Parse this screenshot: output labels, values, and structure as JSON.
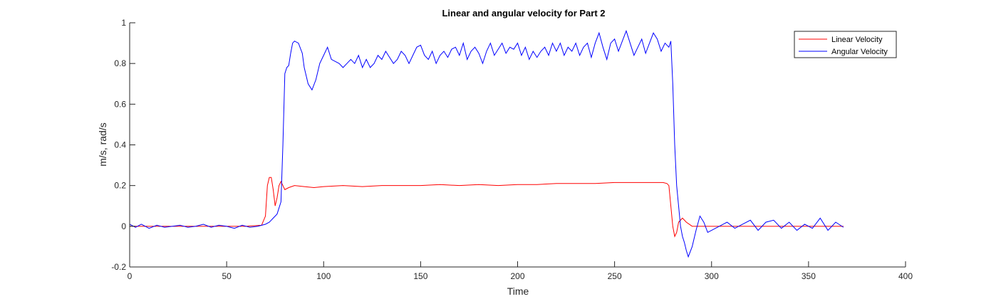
{
  "chart_data": {
    "type": "line",
    "title": "Linear and angular velocity for Part 2",
    "xlabel": "Time",
    "ylabel": "m/s, rad/s",
    "xlim": [
      0,
      400
    ],
    "ylim": [
      -0.2,
      1
    ],
    "xticks": [
      0,
      50,
      100,
      150,
      200,
      250,
      300,
      350,
      400
    ],
    "yticks": [
      -0.2,
      0,
      0.2,
      0.4,
      0.6,
      0.8,
      1
    ],
    "grid": false,
    "legend_position": "top-right",
    "series": [
      {
        "name": "Linear Velocity",
        "color": "#ff0000",
        "x": [
          0,
          10,
          20,
          30,
          40,
          50,
          60,
          68,
          70,
          71,
          72,
          73,
          74,
          75,
          76,
          77,
          78,
          79,
          80,
          82,
          85,
          90,
          95,
          100,
          110,
          120,
          130,
          140,
          150,
          160,
          170,
          180,
          190,
          200,
          210,
          220,
          230,
          240,
          250,
          260,
          270,
          275,
          277,
          278,
          279,
          280,
          281,
          282,
          283,
          285,
          287,
          290,
          300,
          320,
          340,
          360,
          368
        ],
        "y": [
          0,
          0,
          0,
          0,
          0,
          0,
          0,
          0.005,
          0.05,
          0.2,
          0.24,
          0.24,
          0.18,
          0.1,
          0.14,
          0.2,
          0.22,
          0.2,
          0.18,
          0.19,
          0.2,
          0.195,
          0.19,
          0.195,
          0.2,
          0.195,
          0.2,
          0.2,
          0.2,
          0.205,
          0.2,
          0.205,
          0.2,
          0.205,
          0.205,
          0.21,
          0.21,
          0.21,
          0.215,
          0.215,
          0.215,
          0.215,
          0.21,
          0.2,
          0.1,
          0.0,
          -0.05,
          -0.03,
          0.02,
          0.04,
          0.02,
          0.0,
          0.0,
          0.0,
          0.0,
          0.0,
          0.0
        ]
      },
      {
        "name": "Angular Velocity",
        "color": "#0000ff",
        "x": [
          0,
          3,
          6,
          10,
          14,
          18,
          22,
          26,
          30,
          34,
          38,
          42,
          46,
          50,
          54,
          58,
          62,
          66,
          70,
          72,
          74,
          76,
          78,
          79,
          80,
          81,
          82,
          83,
          84,
          85,
          87,
          89,
          90,
          92,
          94,
          96,
          98,
          100,
          102,
          104,
          106,
          108,
          110,
          112,
          114,
          116,
          118,
          120,
          122,
          124,
          126,
          128,
          130,
          132,
          134,
          136,
          138,
          140,
          142,
          144,
          146,
          148,
          150,
          152,
          154,
          156,
          158,
          160,
          162,
          164,
          166,
          168,
          170,
          172,
          174,
          176,
          178,
          180,
          182,
          184,
          186,
          188,
          190,
          192,
          194,
          196,
          198,
          200,
          202,
          204,
          206,
          208,
          210,
          212,
          214,
          216,
          218,
          220,
          222,
          224,
          226,
          228,
          230,
          232,
          234,
          236,
          238,
          240,
          242,
          244,
          246,
          248,
          250,
          252,
          254,
          256,
          258,
          260,
          262,
          264,
          266,
          268,
          270,
          272,
          274,
          276,
          278,
          279,
          280,
          281,
          282,
          283,
          284,
          285,
          286,
          287,
          288,
          290,
          292,
          294,
          296,
          298,
          300,
          304,
          308,
          312,
          316,
          320,
          324,
          328,
          332,
          336,
          340,
          344,
          348,
          352,
          356,
          360,
          364,
          368
        ],
        "y": [
          0.01,
          -0.005,
          0.01,
          -0.01,
          0.005,
          -0.005,
          0.0,
          0.005,
          -0.005,
          0.0,
          0.01,
          -0.005,
          0.005,
          0.0,
          -0.01,
          0.005,
          -0.005,
          0.0,
          0.01,
          0.02,
          0.04,
          0.06,
          0.12,
          0.4,
          0.75,
          0.78,
          0.79,
          0.85,
          0.9,
          0.91,
          0.9,
          0.85,
          0.78,
          0.7,
          0.67,
          0.72,
          0.8,
          0.84,
          0.88,
          0.82,
          0.81,
          0.8,
          0.78,
          0.8,
          0.82,
          0.8,
          0.84,
          0.78,
          0.82,
          0.78,
          0.8,
          0.84,
          0.82,
          0.86,
          0.83,
          0.8,
          0.82,
          0.86,
          0.84,
          0.8,
          0.84,
          0.88,
          0.89,
          0.84,
          0.82,
          0.86,
          0.8,
          0.84,
          0.86,
          0.83,
          0.87,
          0.88,
          0.84,
          0.9,
          0.82,
          0.86,
          0.88,
          0.85,
          0.8,
          0.86,
          0.9,
          0.84,
          0.87,
          0.9,
          0.85,
          0.88,
          0.87,
          0.9,
          0.84,
          0.88,
          0.82,
          0.86,
          0.83,
          0.86,
          0.88,
          0.84,
          0.9,
          0.86,
          0.9,
          0.84,
          0.88,
          0.86,
          0.9,
          0.84,
          0.88,
          0.9,
          0.83,
          0.9,
          0.95,
          0.88,
          0.82,
          0.9,
          0.92,
          0.86,
          0.91,
          0.96,
          0.9,
          0.84,
          0.88,
          0.92,
          0.85,
          0.9,
          0.95,
          0.92,
          0.86,
          0.9,
          0.88,
          0.91,
          0.7,
          0.4,
          0.2,
          0.1,
          0.0,
          -0.05,
          -0.08,
          -0.12,
          -0.15,
          -0.1,
          -0.02,
          0.05,
          0.02,
          -0.03,
          -0.02,
          0.0,
          0.02,
          -0.01,
          0.01,
          0.03,
          -0.02,
          0.02,
          0.03,
          -0.01,
          0.02,
          -0.02,
          0.01,
          -0.01,
          0.04,
          -0.02,
          0.02,
          -0.005
        ]
      }
    ]
  }
}
